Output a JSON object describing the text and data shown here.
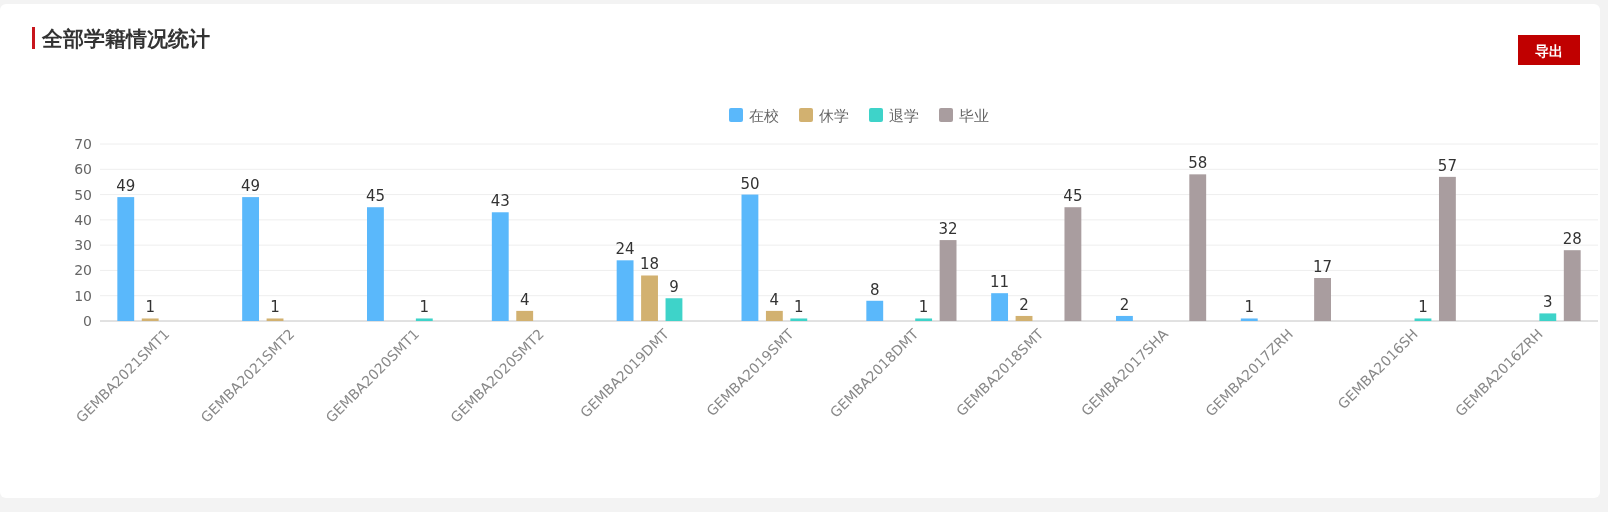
{
  "chart_data": {
    "type": "bar",
    "title": "全部学籍情况统计",
    "annotations": [
      "导出"
    ],
    "categories": [
      "GEMBA2021SMT1",
      "GEMBA2021SMT2",
      "GEMBA2020SMT1",
      "GEMBA2020SMT2",
      "GEMBA2019DMT",
      "GEMBA2019SMT",
      "GEMBA2018DMT",
      "GEMBA2018SMT",
      "GEMBA2017SHA",
      "GEMBA2017ZRH",
      "GEMBA2016SH",
      "GEMBA2016ZRH"
    ],
    "series": [
      {
        "name": "在校",
        "color": "#5ab8fb",
        "values": [
          49,
          49,
          45,
          43,
          24,
          50,
          8,
          11,
          2,
          1,
          null,
          null
        ]
      },
      {
        "name": "休学",
        "color": "#d2b170",
        "values": [
          1,
          1,
          null,
          4,
          18,
          4,
          null,
          2,
          null,
          null,
          null,
          null
        ]
      },
      {
        "name": "退学",
        "color": "#3ed3c9",
        "values": [
          null,
          null,
          1,
          null,
          9,
          1,
          1,
          null,
          null,
          null,
          1,
          3
        ]
      },
      {
        "name": "毕业",
        "color": "#a99d9f",
        "values": [
          null,
          null,
          null,
          null,
          null,
          null,
          32,
          45,
          58,
          17,
          57,
          28
        ]
      }
    ],
    "ylim": [
      0,
      70
    ],
    "yticks": [
      0,
      10,
      20,
      30,
      40,
      50,
      60,
      70
    ],
    "grid": "y",
    "legend": "top",
    "data_labels": true
  }
}
